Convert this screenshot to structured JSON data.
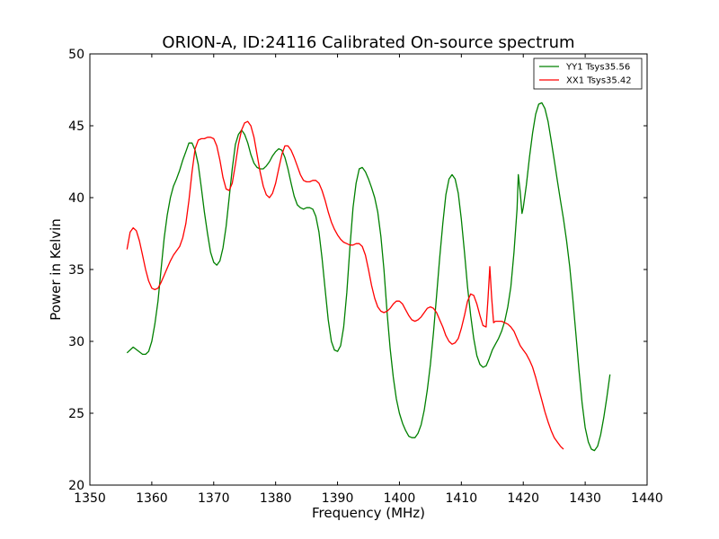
{
  "chart_data": {
    "type": "line",
    "title": "ORION-A, ID:24116 Calibrated On-source spectrum",
    "xlabel": "Frequency (MHz)",
    "ylabel": "Power in Kelvin",
    "xlim": [
      1350,
      1440
    ],
    "ylim": [
      20,
      50
    ],
    "xticks": [
      "1350",
      "1360",
      "1370",
      "1380",
      "1390",
      "1400",
      "1410",
      "1420",
      "1430",
      "1440"
    ],
    "yticks": [
      "20",
      "25",
      "30",
      "35",
      "40",
      "45",
      "50"
    ],
    "grid": false,
    "legend_position": "top-right",
    "series": [
      {
        "name": "YY1 Tsys35.56",
        "color": "#008000",
        "points": [
          [
            1356.0,
            29.2
          ],
          [
            1357.0,
            29.6
          ],
          [
            1358.5,
            29.1
          ],
          [
            1359.0,
            29.1
          ],
          [
            1359.5,
            29.3
          ],
          [
            1360.0,
            30.0
          ],
          [
            1360.5,
            31.2
          ],
          [
            1361.0,
            32.8
          ],
          [
            1361.5,
            35.0
          ],
          [
            1362.0,
            37.2
          ],
          [
            1362.5,
            38.8
          ],
          [
            1363.0,
            40.0
          ],
          [
            1363.5,
            40.8
          ],
          [
            1364.0,
            41.3
          ],
          [
            1364.5,
            41.9
          ],
          [
            1365.0,
            42.6
          ],
          [
            1365.5,
            43.2
          ],
          [
            1366.0,
            43.8
          ],
          [
            1366.5,
            43.8
          ],
          [
            1367.0,
            43.3
          ],
          [
            1367.5,
            42.3
          ],
          [
            1368.0,
            40.7
          ],
          [
            1368.5,
            39.0
          ],
          [
            1369.0,
            37.5
          ],
          [
            1369.5,
            36.2
          ],
          [
            1370.0,
            35.5
          ],
          [
            1370.5,
            35.3
          ],
          [
            1371.0,
            35.6
          ],
          [
            1371.5,
            36.5
          ],
          [
            1372.0,
            38.0
          ],
          [
            1372.5,
            40.0
          ],
          [
            1373.0,
            42.0
          ],
          [
            1373.5,
            43.7
          ],
          [
            1374.0,
            44.4
          ],
          [
            1374.5,
            44.7
          ],
          [
            1375.0,
            44.4
          ],
          [
            1375.5,
            43.8
          ],
          [
            1376.0,
            43.0
          ],
          [
            1376.5,
            42.4
          ],
          [
            1377.0,
            42.1
          ],
          [
            1377.5,
            42.0
          ],
          [
            1378.0,
            42.0
          ],
          [
            1378.5,
            42.2
          ],
          [
            1379.0,
            42.5
          ],
          [
            1379.5,
            42.9
          ],
          [
            1380.0,
            43.2
          ],
          [
            1380.5,
            43.4
          ],
          [
            1381.0,
            43.3
          ],
          [
            1381.5,
            42.8
          ],
          [
            1382.0,
            42.0
          ],
          [
            1382.5,
            41.0
          ],
          [
            1383.0,
            40.1
          ],
          [
            1383.5,
            39.5
          ],
          [
            1384.0,
            39.3
          ],
          [
            1384.5,
            39.2
          ],
          [
            1385.0,
            39.3
          ],
          [
            1385.5,
            39.3
          ],
          [
            1386.0,
            39.2
          ],
          [
            1386.5,
            38.7
          ],
          [
            1387.0,
            37.6
          ],
          [
            1387.5,
            35.8
          ],
          [
            1388.0,
            33.6
          ],
          [
            1388.5,
            31.5
          ],
          [
            1389.0,
            30.0
          ],
          [
            1389.5,
            29.4
          ],
          [
            1390.0,
            29.3
          ],
          [
            1390.5,
            29.7
          ],
          [
            1391.0,
            31.0
          ],
          [
            1391.5,
            33.4
          ],
          [
            1392.0,
            36.5
          ],
          [
            1392.5,
            39.3
          ],
          [
            1393.0,
            41.0
          ],
          [
            1393.5,
            42.0
          ],
          [
            1394.0,
            42.1
          ],
          [
            1394.5,
            41.8
          ],
          [
            1395.0,
            41.3
          ],
          [
            1395.5,
            40.7
          ],
          [
            1396.0,
            40.0
          ],
          [
            1396.5,
            39.0
          ],
          [
            1397.0,
            37.3
          ],
          [
            1397.5,
            35.0
          ],
          [
            1398.0,
            32.0
          ],
          [
            1398.5,
            29.5
          ],
          [
            1399.0,
            27.5
          ],
          [
            1399.5,
            26.0
          ],
          [
            1400.0,
            25.0
          ],
          [
            1400.5,
            24.3
          ],
          [
            1401.0,
            23.8
          ],
          [
            1401.5,
            23.4
          ],
          [
            1402.0,
            23.3
          ],
          [
            1402.5,
            23.3
          ],
          [
            1403.0,
            23.6
          ],
          [
            1403.5,
            24.2
          ],
          [
            1404.0,
            25.2
          ],
          [
            1404.5,
            26.6
          ],
          [
            1405.0,
            28.4
          ],
          [
            1405.5,
            30.6
          ],
          [
            1406.0,
            33.2
          ],
          [
            1406.5,
            35.8
          ],
          [
            1407.0,
            38.2
          ],
          [
            1407.5,
            40.2
          ],
          [
            1408.0,
            41.3
          ],
          [
            1408.5,
            41.6
          ],
          [
            1409.0,
            41.3
          ],
          [
            1409.5,
            40.3
          ],
          [
            1410.0,
            38.5
          ],
          [
            1410.5,
            36.2
          ],
          [
            1411.0,
            33.8
          ],
          [
            1411.5,
            31.8
          ],
          [
            1412.0,
            30.2
          ],
          [
            1412.5,
            29.0
          ],
          [
            1413.0,
            28.4
          ],
          [
            1413.5,
            28.2
          ],
          [
            1414.0,
            28.3
          ],
          [
            1414.5,
            28.8
          ],
          [
            1415.0,
            29.4
          ],
          [
            1415.5,
            29.8
          ],
          [
            1416.0,
            30.2
          ],
          [
            1416.5,
            30.7
          ],
          [
            1417.0,
            31.4
          ],
          [
            1417.5,
            32.4
          ],
          [
            1418.0,
            33.8
          ],
          [
            1418.5,
            36.2
          ],
          [
            1419.0,
            39.2
          ],
          [
            1419.2,
            41.6
          ],
          [
            1419.5,
            40.4
          ],
          [
            1419.8,
            38.9
          ],
          [
            1420.0,
            39.3
          ],
          [
            1420.5,
            40.9
          ],
          [
            1421.0,
            42.8
          ],
          [
            1421.5,
            44.5
          ],
          [
            1422.0,
            45.8
          ],
          [
            1422.5,
            46.5
          ],
          [
            1423.0,
            46.6
          ],
          [
            1423.5,
            46.2
          ],
          [
            1424.0,
            45.3
          ],
          [
            1424.5,
            44.0
          ],
          [
            1425.0,
            42.6
          ],
          [
            1425.5,
            41.2
          ],
          [
            1426.0,
            39.8
          ],
          [
            1426.5,
            38.5
          ],
          [
            1427.0,
            37.0
          ],
          [
            1427.5,
            35.2
          ],
          [
            1428.0,
            33.0
          ],
          [
            1428.5,
            30.5
          ],
          [
            1429.0,
            28.0
          ],
          [
            1429.5,
            25.7
          ],
          [
            1430.0,
            24.0
          ],
          [
            1430.5,
            23.0
          ],
          [
            1431.0,
            22.5
          ],
          [
            1431.5,
            22.4
          ],
          [
            1432.0,
            22.7
          ],
          [
            1432.5,
            23.5
          ],
          [
            1433.0,
            24.7
          ],
          [
            1433.5,
            26.1
          ],
          [
            1434.0,
            27.7
          ]
        ]
      },
      {
        "name": "XX1 Tsys35.42",
        "color": "#ff0000",
        "points": [
          [
            1356.0,
            36.4
          ],
          [
            1356.5,
            37.6
          ],
          [
            1357.0,
            37.9
          ],
          [
            1357.5,
            37.7
          ],
          [
            1358.0,
            37.0
          ],
          [
            1358.5,
            36.0
          ],
          [
            1359.0,
            35.0
          ],
          [
            1359.5,
            34.2
          ],
          [
            1360.0,
            33.7
          ],
          [
            1360.5,
            33.6
          ],
          [
            1361.0,
            33.7
          ],
          [
            1361.5,
            34.1
          ],
          [
            1362.0,
            34.6
          ],
          [
            1362.5,
            35.1
          ],
          [
            1363.0,
            35.6
          ],
          [
            1363.5,
            36.0
          ],
          [
            1364.0,
            36.3
          ],
          [
            1364.5,
            36.6
          ],
          [
            1365.0,
            37.2
          ],
          [
            1365.5,
            38.2
          ],
          [
            1366.0,
            39.8
          ],
          [
            1366.5,
            41.8
          ],
          [
            1367.0,
            43.4
          ],
          [
            1367.5,
            44.0
          ],
          [
            1368.0,
            44.1
          ],
          [
            1368.5,
            44.1
          ],
          [
            1369.0,
            44.2
          ],
          [
            1369.5,
            44.2
          ],
          [
            1370.0,
            44.1
          ],
          [
            1370.5,
            43.6
          ],
          [
            1371.0,
            42.6
          ],
          [
            1371.5,
            41.4
          ],
          [
            1372.0,
            40.6
          ],
          [
            1372.5,
            40.5
          ],
          [
            1373.0,
            41.0
          ],
          [
            1373.5,
            42.3
          ],
          [
            1374.0,
            43.7
          ],
          [
            1374.5,
            44.7
          ],
          [
            1375.0,
            45.2
          ],
          [
            1375.5,
            45.3
          ],
          [
            1376.0,
            45.0
          ],
          [
            1376.5,
            44.2
          ],
          [
            1377.0,
            43.0
          ],
          [
            1377.5,
            41.8
          ],
          [
            1378.0,
            40.8
          ],
          [
            1378.5,
            40.2
          ],
          [
            1379.0,
            40.0
          ],
          [
            1379.5,
            40.3
          ],
          [
            1380.0,
            41.0
          ],
          [
            1380.5,
            42.0
          ],
          [
            1381.0,
            43.0
          ],
          [
            1381.5,
            43.6
          ],
          [
            1382.0,
            43.6
          ],
          [
            1382.5,
            43.3
          ],
          [
            1383.0,
            42.8
          ],
          [
            1383.5,
            42.2
          ],
          [
            1384.0,
            41.6
          ],
          [
            1384.5,
            41.2
          ],
          [
            1385.0,
            41.1
          ],
          [
            1385.5,
            41.1
          ],
          [
            1386.0,
            41.2
          ],
          [
            1386.5,
            41.2
          ],
          [
            1387.0,
            41.0
          ],
          [
            1387.5,
            40.5
          ],
          [
            1388.0,
            39.8
          ],
          [
            1388.5,
            39.0
          ],
          [
            1389.0,
            38.3
          ],
          [
            1389.5,
            37.8
          ],
          [
            1390.0,
            37.4
          ],
          [
            1390.5,
            37.1
          ],
          [
            1391.0,
            36.9
          ],
          [
            1391.5,
            36.8
          ],
          [
            1392.0,
            36.7
          ],
          [
            1392.5,
            36.7
          ],
          [
            1393.0,
            36.8
          ],
          [
            1393.5,
            36.8
          ],
          [
            1394.0,
            36.6
          ],
          [
            1394.5,
            36.0
          ],
          [
            1395.0,
            35.0
          ],
          [
            1395.5,
            33.9
          ],
          [
            1396.0,
            33.0
          ],
          [
            1396.5,
            32.4
          ],
          [
            1397.0,
            32.1
          ],
          [
            1397.5,
            32.0
          ],
          [
            1398.0,
            32.1
          ],
          [
            1398.5,
            32.3
          ],
          [
            1399.0,
            32.6
          ],
          [
            1399.5,
            32.8
          ],
          [
            1400.0,
            32.8
          ],
          [
            1400.5,
            32.6
          ],
          [
            1401.0,
            32.2
          ],
          [
            1401.5,
            31.8
          ],
          [
            1402.0,
            31.5
          ],
          [
            1402.5,
            31.4
          ],
          [
            1403.0,
            31.5
          ],
          [
            1403.5,
            31.7
          ],
          [
            1404.0,
            32.0
          ],
          [
            1404.5,
            32.3
          ],
          [
            1405.0,
            32.4
          ],
          [
            1405.5,
            32.3
          ],
          [
            1406.0,
            32.0
          ],
          [
            1406.5,
            31.5
          ],
          [
            1407.0,
            31.0
          ],
          [
            1407.5,
            30.4
          ],
          [
            1408.0,
            30.0
          ],
          [
            1408.5,
            29.8
          ],
          [
            1409.0,
            29.9
          ],
          [
            1409.5,
            30.2
          ],
          [
            1410.0,
            30.9
          ],
          [
            1410.5,
            31.8
          ],
          [
            1411.0,
            32.8
          ],
          [
            1411.5,
            33.3
          ],
          [
            1412.0,
            33.2
          ],
          [
            1412.5,
            32.6
          ],
          [
            1413.0,
            31.8
          ],
          [
            1413.5,
            31.1
          ],
          [
            1414.0,
            31.0
          ],
          [
            1414.3,
            33.0
          ],
          [
            1414.6,
            35.2
          ],
          [
            1414.9,
            33.0
          ],
          [
            1415.2,
            31.3
          ],
          [
            1415.5,
            31.4
          ],
          [
            1416.0,
            31.4
          ],
          [
            1416.5,
            31.4
          ],
          [
            1417.0,
            31.3
          ],
          [
            1417.5,
            31.2
          ],
          [
            1418.0,
            31.0
          ],
          [
            1418.5,
            30.7
          ],
          [
            1419.0,
            30.2
          ],
          [
            1419.5,
            29.7
          ],
          [
            1420.0,
            29.4
          ],
          [
            1420.5,
            29.1
          ],
          [
            1421.0,
            28.7
          ],
          [
            1421.5,
            28.2
          ],
          [
            1422.0,
            27.5
          ],
          [
            1422.5,
            26.7
          ],
          [
            1423.0,
            25.9
          ],
          [
            1423.5,
            25.1
          ],
          [
            1424.0,
            24.4
          ],
          [
            1424.5,
            23.8
          ],
          [
            1425.0,
            23.3
          ],
          [
            1425.5,
            23.0
          ],
          [
            1426.0,
            22.7
          ],
          [
            1426.5,
            22.5
          ]
        ]
      }
    ]
  }
}
